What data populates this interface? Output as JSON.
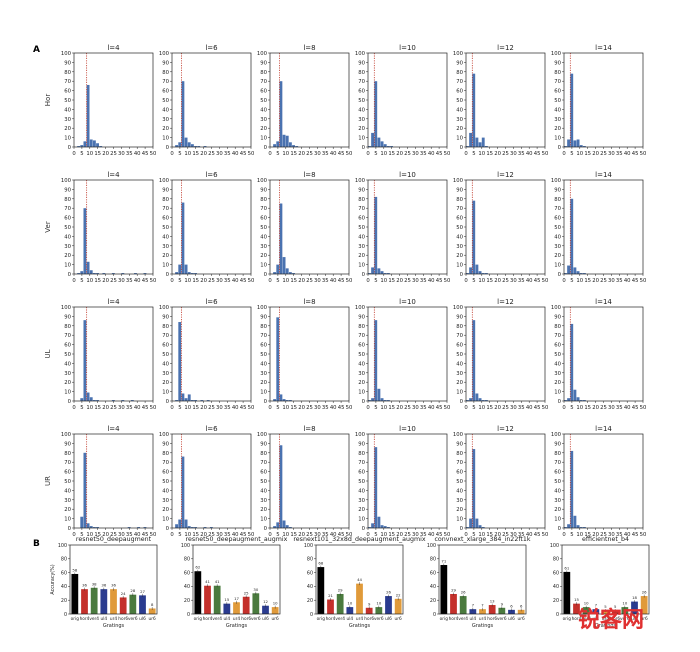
{
  "panel_labels": {
    "a": "A",
    "b": "B"
  },
  "colors": {
    "hist_bar": "#4a72b0",
    "vline": "#c0392b",
    "orig": "#000000",
    "hor": "#c4302b",
    "ver": "#4a7a3e",
    "ul": "#2a3b8f",
    "ur": "#e09a3a",
    "watermark": "#e03030"
  },
  "chart_data": [
    {
      "type": "bar",
      "name": "histogram-grid",
      "rows": [
        "Hor",
        "Ver",
        "UL",
        "UR"
      ],
      "columns": [
        "l=4",
        "l=6",
        "l=8",
        "l=10",
        "l=12",
        "l=14"
      ],
      "ylim": [
        0,
        100
      ],
      "yticks": [
        0,
        10,
        20,
        30,
        40,
        50,
        60,
        70,
        80,
        90,
        100
      ],
      "xlim": [
        0,
        50
      ],
      "xticks": [
        0,
        5,
        10,
        15,
        20,
        25,
        30,
        35,
        40,
        45,
        50
      ],
      "bin_width": 2,
      "grid": false,
      "vline_x": [
        [
          8,
          6,
          6,
          4,
          4,
          4
        ],
        [
          8,
          6,
          6,
          4,
          4,
          4
        ],
        [
          8,
          6,
          6,
          4,
          4,
          4
        ],
        [
          8,
          6,
          6,
          4,
          4,
          4
        ]
      ],
      "bins": [
        [
          {
            "x": [
              2,
              4,
              6,
              8,
              10,
              12,
              14,
              16
            ],
            "h": [
              1,
              2,
              6,
              66,
              8,
              7,
              4,
              1
            ]
          },
          {
            "x": [
              2,
              4,
              6,
              8,
              10,
              12,
              14,
              16,
              20
            ],
            "h": [
              2,
              5,
              70,
              10,
              5,
              3,
              1,
              1,
              1
            ]
          },
          {
            "x": [
              2,
              4,
              6,
              8,
              10,
              12,
              14,
              16
            ],
            "h": [
              3,
              6,
              70,
              13,
              12,
              5,
              2,
              1
            ]
          },
          {
            "x": [
              0,
              2,
              4,
              6,
              8,
              10,
              12,
              14
            ],
            "h": [
              1,
              15,
              70,
              10,
              6,
              3,
              1,
              1
            ]
          },
          {
            "x": [
              0,
              2,
              4,
              6,
              8,
              10,
              12
            ],
            "h": [
              1,
              15,
              78,
              10,
              5,
              10,
              1
            ]
          },
          {
            "x": [
              0,
              2,
              4,
              6,
              8,
              10,
              12
            ],
            "h": [
              1,
              8,
              78,
              7,
              8,
              2,
              1
            ]
          }
        ],
        [
          {
            "x": [
              2,
              4,
              6,
              8,
              10,
              12,
              14,
              18,
              24,
              30,
              38,
              44
            ],
            "h": [
              1,
              3,
              70,
              13,
              4,
              1,
              1,
              1,
              1,
              1,
              1,
              1
            ]
          },
          {
            "x": [
              2,
              4,
              6,
              8,
              10,
              12,
              14
            ],
            "h": [
              2,
              10,
              76,
              10,
              2,
              1,
              1
            ]
          },
          {
            "x": [
              2,
              4,
              6,
              8,
              10,
              12,
              14
            ],
            "h": [
              2,
              10,
              75,
              18,
              6,
              2,
              1
            ]
          },
          {
            "x": [
              0,
              2,
              4,
              6,
              8,
              10,
              12
            ],
            "h": [
              1,
              7,
              82,
              6,
              3,
              1,
              1
            ]
          },
          {
            "x": [
              0,
              2,
              4,
              6,
              8,
              10,
              12
            ],
            "h": [
              1,
              7,
              78,
              10,
              3,
              1,
              1
            ]
          },
          {
            "x": [
              0,
              2,
              4,
              6,
              8,
              10,
              12
            ],
            "h": [
              1,
              9,
              80,
              7,
              3,
              1,
              1
            ]
          }
        ],
        [
          {
            "x": [
              4,
              6,
              8,
              10,
              12,
              14,
              24,
              30,
              36
            ],
            "h": [
              3,
              86,
              9,
              4,
              1,
              1,
              1,
              1,
              1
            ]
          },
          {
            "x": [
              2,
              4,
              6,
              8,
              10,
              12,
              14,
              18,
              22
            ],
            "h": [
              1,
              84,
              8,
              3,
              7,
              1,
              1,
              1,
              1
            ]
          },
          {
            "x": [
              2,
              4,
              6,
              8,
              10,
              12
            ],
            "h": [
              2,
              89,
              7,
              2,
              1,
              1
            ]
          },
          {
            "x": [
              0,
              2,
              4,
              6,
              8,
              10,
              12
            ],
            "h": [
              1,
              3,
              86,
              13,
              3,
              1,
              1
            ]
          },
          {
            "x": [
              0,
              2,
              4,
              6,
              8,
              10,
              12
            ],
            "h": [
              1,
              3,
              86,
              8,
              3,
              1,
              1
            ]
          },
          {
            "x": [
              0,
              2,
              4,
              6,
              8,
              10,
              12
            ],
            "h": [
              1,
              3,
              82,
              12,
              4,
              1,
              1
            ]
          }
        ],
        [
          {
            "x": [
              4,
              6,
              8,
              10,
              12,
              14,
              34,
              40,
              44
            ],
            "h": [
              12,
              80,
              5,
              2,
              1,
              1,
              1,
              1,
              1
            ]
          },
          {
            "x": [
              2,
              4,
              6,
              8,
              10,
              12,
              14,
              20,
              24
            ],
            "h": [
              4,
              9,
              76,
              9,
              2,
              1,
              1,
              1,
              1
            ]
          },
          {
            "x": [
              2,
              4,
              6,
              8,
              10,
              12
            ],
            "h": [
              2,
              6,
              88,
              8,
              3,
              1
            ]
          },
          {
            "x": [
              0,
              2,
              4,
              6,
              8,
              10,
              12
            ],
            "h": [
              1,
              5,
              86,
              12,
              3,
              2,
              1
            ]
          },
          {
            "x": [
              0,
              2,
              4,
              6,
              8,
              10
            ],
            "h": [
              1,
              10,
              84,
              10,
              3,
              1
            ]
          },
          {
            "x": [
              0,
              2,
              4,
              6,
              8,
              10,
              12
            ],
            "h": [
              1,
              4,
              82,
              13,
              3,
              1,
              1
            ]
          }
        ]
      ]
    },
    {
      "type": "bar",
      "name": "model-accuracy",
      "ylabel": "Accuracy(%)",
      "xlabel": "Gratings",
      "ylim": [
        0,
        100
      ],
      "yticks": [
        0,
        20,
        40,
        60,
        80,
        100
      ],
      "categories": [
        "orig",
        "hor4",
        "ver4",
        "ul4",
        "ur4",
        "hor6",
        "ver6",
        "ul6",
        "ur6"
      ],
      "x_tick_labels": [
        "orig",
        "hor4",
        "ver4",
        "ul4",
        "ur4",
        "hor6",
        "ver6",
        "ul6",
        "ur6"
      ],
      "category_colors": [
        "orig",
        "hor",
        "ver",
        "ul",
        "ur",
        "hor",
        "ver",
        "ul",
        "ur"
      ],
      "series": [
        {
          "name": "resnet50_deepaugment",
          "values": [
            58,
            36,
            38,
            36,
            36,
            24,
            28,
            27,
            8
          ]
        },
        {
          "name": "resnet50_deepaugment_augmix",
          "values": [
            62,
            41,
            41,
            15,
            17,
            25,
            30,
            12,
            10
          ]
        },
        {
          "name": "resnext101_32x8d_deepaugment_augmix",
          "values": [
            68,
            21,
            29,
            10,
            44,
            9,
            10,
            26,
            22
          ]
        },
        {
          "name": "convnext_xlarge_384_in22ft1k",
          "values": [
            71,
            29,
            26,
            7,
            7,
            13,
            9,
            6,
            6
          ]
        },
        {
          "name": "efficientnet_b4",
          "values": [
            61,
            15,
            10,
            7,
            5,
            5,
            10,
            18,
            26
          ]
        }
      ]
    }
  ],
  "watermark": "锐客网"
}
